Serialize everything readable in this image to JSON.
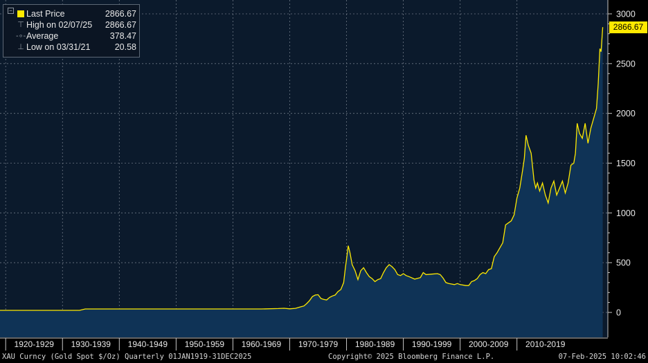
{
  "legend": {
    "rows": [
      {
        "label": "Last Price",
        "value": "2866.67",
        "icon": "yellow-square-icon"
      },
      {
        "label": "High on 02/07/25",
        "value": "2866.67",
        "icon": "high-marker-icon"
      },
      {
        "label": "Average",
        "value": "378.47",
        "icon": "average-marker-icon"
      },
      {
        "label": "Low on 03/31/21",
        "value": "20.58",
        "icon": "low-marker-icon"
      }
    ]
  },
  "last_price_tag": "2866.67",
  "footer": {
    "security": "XAU Curncy (Gold Spot  $/Oz)  Quarterly 01JAN1919-31DEC2025",
    "copyright": "Copyright© 2025 Bloomberg Finance L.P.",
    "timestamp": "07-Feb-2025 10:02:46"
  },
  "colors": {
    "background": "#0b1a2c",
    "line": "#ffe900",
    "area": "#0f3356",
    "grid": "#6d7784",
    "text": "#e8e8e8"
  },
  "chart_data": {
    "type": "area",
    "title": "",
    "xlabel": "",
    "ylabel": "",
    "ylim": [
      -150,
      3200
    ],
    "xlim": [
      1919,
      2026
    ],
    "yticks": [
      0,
      500,
      1000,
      1500,
      2000,
      2500,
      3000
    ],
    "x_tick_labels": [
      "1920-1929",
      "1930-1939",
      "1940-1949",
      "1950-1959",
      "1960-1969",
      "1970-1979",
      "1980-1989",
      "1990-1999",
      "2000-2009",
      "2010-2019"
    ],
    "x_tick_starts": [
      1920,
      1930,
      1940,
      1950,
      1960,
      1970,
      1980,
      1990,
      2000,
      2010
    ],
    "grid": true,
    "legend_position": "top-left",
    "series": [
      {
        "name": "Last Price",
        "x": [
          1919,
          1933.0,
          1934.0,
          1950,
          1965,
          1968.0,
          1969.0,
          1970.0,
          1971.0,
          1972.0,
          1972.5,
          1973.0,
          1973.5,
          1974.0,
          1974.5,
          1975.0,
          1975.5,
          1976.0,
          1976.5,
          1977.0,
          1977.5,
          1978.0,
          1978.5,
          1979.0,
          1979.5,
          1979.8,
          1980.0,
          1980.3,
          1980.6,
          1981.0,
          1981.5,
          1982.0,
          1982.5,
          1983.0,
          1983.5,
          1984.0,
          1984.5,
          1985.0,
          1985.5,
          1986.0,
          1986.5,
          1987.0,
          1987.5,
          1988.0,
          1988.5,
          1989.0,
          1989.5,
          1990.0,
          1990.5,
          1991.0,
          1992.0,
          1993.0,
          1993.5,
          1994.0,
          1995.0,
          1996.0,
          1996.5,
          1997.0,
          1997.5,
          1998.0,
          1999.0,
          1999.5,
          2000.0,
          2001.0,
          2001.5,
          2002.0,
          2002.5,
          2003.0,
          2003.5,
          2004.0,
          2004.5,
          2005.0,
          2005.5,
          2006.0,
          2006.5,
          2007.0,
          2007.5,
          2008.0,
          2008.5,
          2009.0,
          2009.5,
          2010.0,
          2010.5,
          2011.0,
          2011.3,
          2011.6,
          2012.0,
          2012.5,
          2013.0,
          2013.3,
          2013.6,
          2014.0,
          2014.5,
          2015.0,
          2015.5,
          2016.0,
          2016.5,
          2017.0,
          2017.5,
          2018.0,
          2018.5,
          2019.0,
          2019.5,
          2020.0,
          2020.3,
          2020.6,
          2021.0,
          2021.5,
          2022.0,
          2022.5,
          2023.0,
          2023.5,
          2024.0,
          2024.3,
          2024.6,
          2024.8,
          2025.1
        ],
        "values": [
          20.67,
          20.67,
          35,
          35,
          35,
          39,
          42,
          36,
          41,
          58,
          65,
          90,
          120,
          160,
          175,
          178,
          140,
          130,
          125,
          150,
          165,
          175,
          210,
          230,
          300,
          450,
          530,
          670,
          600,
          480,
          420,
          330,
          420,
          450,
          400,
          360,
          340,
          310,
          330,
          340,
          400,
          450,
          480,
          460,
          430,
          380,
          370,
          390,
          370,
          360,
          335,
          350,
          400,
          380,
          385,
          390,
          380,
          345,
          300,
          290,
          280,
          290,
          280,
          270,
          270,
          310,
          320,
          340,
          380,
          400,
          390,
          430,
          440,
          560,
          600,
          650,
          700,
          880,
          900,
          920,
          980,
          1150,
          1250,
          1430,
          1550,
          1780,
          1680,
          1600,
          1330,
          1250,
          1300,
          1220,
          1300,
          1180,
          1100,
          1250,
          1320,
          1180,
          1250,
          1320,
          1200,
          1300,
          1480,
          1500,
          1600,
          1900,
          1800,
          1750,
          1900,
          1700,
          1850,
          1950,
          2050,
          2300,
          2650,
          2620,
          2866.67
        ]
      }
    ]
  }
}
